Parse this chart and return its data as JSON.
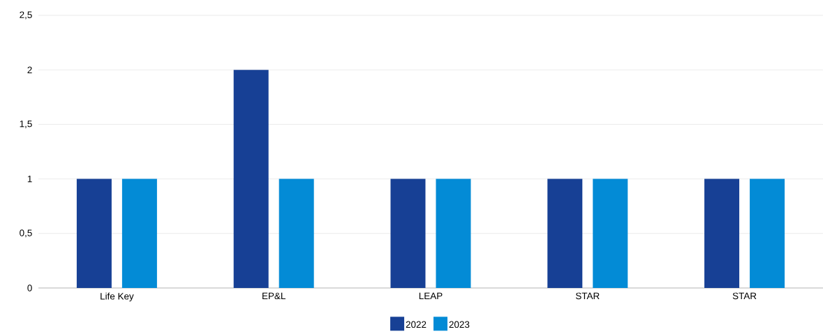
{
  "chart_data": {
    "type": "bar",
    "categories": [
      "Life Key",
      "EP&L",
      "LEAP",
      "STAR",
      "STAR"
    ],
    "series": [
      {
        "name": "2022",
        "color": "#174095",
        "values": [
          1,
          2,
          1,
          1,
          1
        ]
      },
      {
        "name": "2023",
        "color": "#038bd6",
        "values": [
          1,
          1,
          1,
          1,
          1
        ]
      }
    ],
    "ylim": [
      0,
      2.5
    ],
    "yticks": [
      0,
      {
        "value": 0.5,
        "label": "0,5"
      },
      1,
      {
        "value": 1.5,
        "label": "1,5"
      },
      2,
      {
        "value": 2.5,
        "label": "2,5"
      }
    ],
    "grid": "y",
    "legend": "bottom"
  }
}
